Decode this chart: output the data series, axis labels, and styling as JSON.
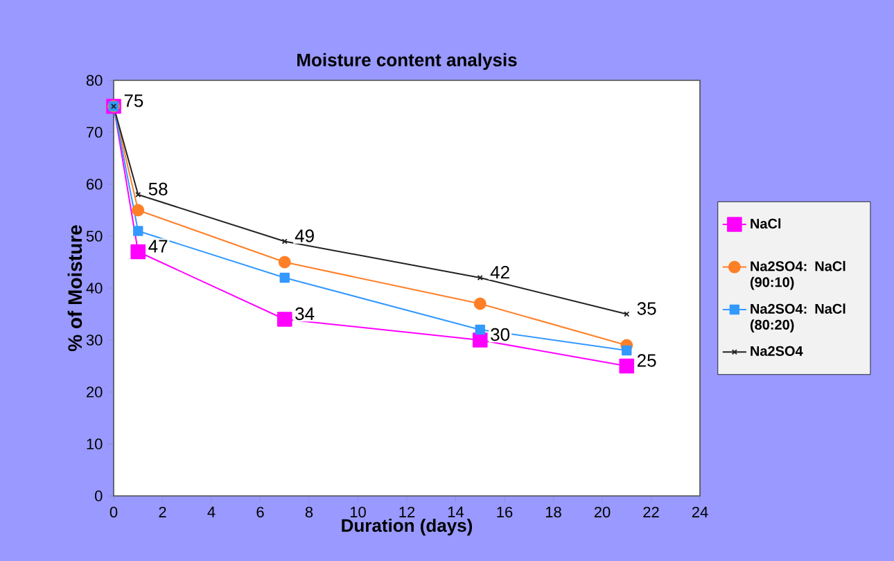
{
  "chart_data": {
    "type": "line",
    "title": "Moisture content analysis",
    "xlabel": "Duration (days)",
    "ylabel": "% of Moisture",
    "x": [
      0,
      1,
      7,
      15,
      21
    ],
    "series": [
      {
        "name": "NaCl",
        "color": "#ff00ff",
        "marker": "square",
        "values": [
          75,
          47,
          34,
          30,
          25
        ],
        "value_labels": [
          null,
          "47",
          "34",
          "30",
          "25"
        ]
      },
      {
        "name": "Na2SO4: NaCl (90:10)",
        "color": "#ff7f27",
        "marker": "circle",
        "values": [
          75,
          55,
          45,
          37,
          29
        ]
      },
      {
        "name": "Na2SO4: NaCl (80:20)",
        "color": "#3399ff",
        "marker": "square",
        "values": [
          75,
          51,
          42,
          32,
          28
        ]
      },
      {
        "name": "Na2SO4",
        "color": "#222222",
        "marker": "cross",
        "values": [
          75,
          58,
          49,
          42,
          35
        ],
        "value_labels": [
          "75",
          "58",
          "49",
          "42",
          "35"
        ]
      }
    ],
    "xlim": [
      0,
      24
    ],
    "xticks": [
      0,
      2,
      4,
      6,
      8,
      10,
      12,
      14,
      16,
      18,
      20,
      22,
      24
    ],
    "ylim": [
      0,
      80
    ],
    "yticks": [
      0,
      10,
      20,
      30,
      40,
      50,
      60,
      70,
      80
    ],
    "grid": false,
    "legend": "right"
  }
}
